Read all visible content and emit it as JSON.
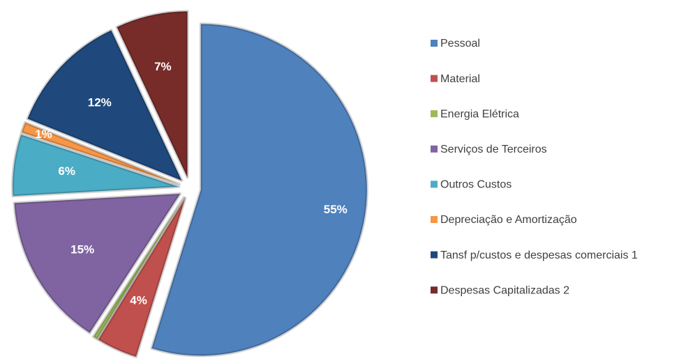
{
  "chart_data": {
    "type": "pie",
    "categories": [
      "Pessoal",
      "Material",
      "Energia Elétrica",
      "Serviços de Terceiros",
      "Outros Custos",
      "Depreciação e Amortização",
      "Tansf p/custos e despesas comerciais 1",
      "Despesas Capitalizadas 2"
    ],
    "values": [
      55,
      4,
      0.4,
      15,
      6,
      1,
      12,
      7
    ],
    "value_labels": [
      "55%",
      "4%",
      null,
      "15%",
      "6%",
      "1%",
      "12%",
      "7%"
    ],
    "colors": [
      "#4f81bd",
      "#c0504d",
      "#9bbb59",
      "#8064a2",
      "#4bacc6",
      "#f79646",
      "#1f497d",
      "#772c2a"
    ],
    "legend": "right"
  }
}
